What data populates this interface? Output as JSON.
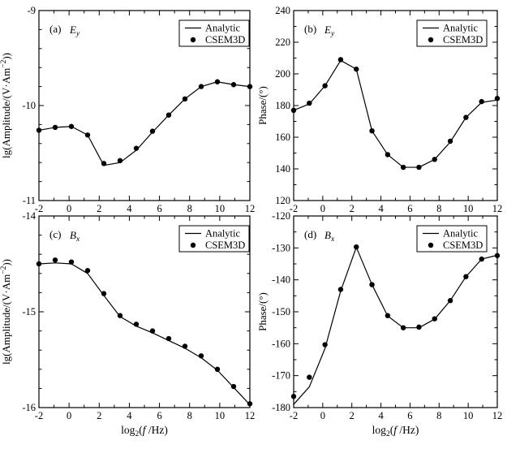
{
  "figure": {
    "background": "#ffffff",
    "ink_color": "#000000",
    "legend": {
      "entries": [
        "Analytic",
        "CSEM3D"
      ],
      "position": "top-right"
    }
  },
  "x_axis": {
    "label_plain": "log2(f/Hz)",
    "label_parts": [
      [
        "t",
        "log"
      ],
      [
        "sub",
        "2"
      ],
      [
        "t",
        "("
      ],
      [
        "i",
        "f"
      ],
      [
        "t",
        " /Hz)"
      ]
    ],
    "range": [
      -2,
      12
    ],
    "ticks": [
      -2,
      0,
      2,
      4,
      6,
      8,
      10,
      12
    ],
    "minor_step": 1
  },
  "chart_data": [
    {
      "id": "a",
      "type": "line",
      "panel": "(a)",
      "symbol_plain": "Ey",
      "symbol_parts": [
        [
          "i",
          "E"
        ],
        [
          "isub",
          "y"
        ]
      ],
      "ylabel_plain": "lg(Amplitude/(V·Am^-2))",
      "ylabel_parts": [
        [
          "t",
          "lg(Amplitude/(V·Am"
        ],
        [
          "sup",
          "−2"
        ],
        [
          "t",
          "))"
        ]
      ],
      "ylim": [
        -11,
        -9
      ],
      "yticks": [
        -9,
        -10,
        -11
      ],
      "y_minor_step": 0.2,
      "show_xlabel": false,
      "x": [
        -2,
        -0.923,
        0.154,
        1.231,
        2.308,
        3.385,
        4.462,
        5.538,
        6.615,
        7.692,
        8.769,
        9.846,
        10.923,
        12
      ],
      "series": [
        {
          "name": "Analytic",
          "style": "line",
          "values": [
            -10.26,
            -10.23,
            -10.22,
            -10.31,
            -10.63,
            -10.6,
            -10.47,
            -10.28,
            -10.1,
            -9.93,
            -9.8,
            -9.75,
            -9.78,
            -9.8
          ]
        },
        {
          "name": "CSEM3D",
          "style": "scatter",
          "values": [
            -10.26,
            -10.23,
            -10.22,
            -10.31,
            -10.61,
            -10.58,
            -10.45,
            -10.27,
            -10.1,
            -9.93,
            -9.8,
            -9.75,
            -9.78,
            -9.8
          ]
        }
      ]
    },
    {
      "id": "b",
      "type": "line",
      "panel": "(b)",
      "symbol_plain": "Ey",
      "symbol_parts": [
        [
          "i",
          "E"
        ],
        [
          "isub",
          "y"
        ]
      ],
      "ylabel_plain": "Phase/(°)",
      "ylabel_parts": [
        [
          "t",
          "Phase/(°)"
        ]
      ],
      "ylim": [
        120,
        240
      ],
      "yticks": [
        240,
        220,
        200,
        180,
        160,
        140,
        120
      ],
      "y_minor_step": 10,
      "show_xlabel": false,
      "x": [
        -2,
        -0.923,
        0.154,
        1.231,
        2.308,
        3.385,
        4.462,
        5.538,
        6.615,
        7.692,
        8.769,
        9.846,
        10.923,
        12
      ],
      "series": [
        {
          "name": "Analytic",
          "style": "line",
          "values": [
            177,
            181,
            192.5,
            208.5,
            203,
            164,
            149,
            141,
            141,
            146,
            157,
            172.5,
            182,
            183.5
          ]
        },
        {
          "name": "CSEM3D",
          "style": "scatter",
          "values": [
            177,
            181.5,
            192.5,
            209,
            203,
            164,
            149,
            141,
            141,
            146,
            157.5,
            172.5,
            182.5,
            184.5
          ]
        }
      ]
    },
    {
      "id": "c",
      "type": "line",
      "panel": "(c)",
      "symbol_plain": "Bx",
      "symbol_parts": [
        [
          "i",
          "B"
        ],
        [
          "isub",
          "x"
        ]
      ],
      "ylabel_plain": "lg(Amplitude/(V·Am^-2))",
      "ylabel_parts": [
        [
          "t",
          "lg(Amplitude/(V·Am"
        ],
        [
          "sup",
          "−2"
        ],
        [
          "t",
          "))"
        ]
      ],
      "ylim": [
        -16,
        -14
      ],
      "yticks": [
        -14,
        -15,
        -16
      ],
      "y_minor_step": 0.2,
      "show_xlabel": true,
      "x": [
        -2,
        -0.923,
        0.154,
        1.231,
        2.308,
        3.385,
        4.462,
        5.538,
        6.615,
        7.692,
        8.769,
        9.846,
        10.923,
        12
      ],
      "series": [
        {
          "name": "Analytic",
          "style": "line",
          "values": [
            -14.5,
            -14.49,
            -14.5,
            -14.6,
            -14.83,
            -15.05,
            -15.15,
            -15.22,
            -15.3,
            -15.38,
            -15.48,
            -15.61,
            -15.79,
            -15.97
          ]
        },
        {
          "name": "CSEM3D",
          "style": "scatter",
          "values": [
            -14.5,
            -14.46,
            -14.48,
            -14.57,
            -14.81,
            -15.04,
            -15.13,
            -15.2,
            -15.28,
            -15.36,
            -15.46,
            -15.6,
            -15.78,
            -15.96
          ]
        }
      ]
    },
    {
      "id": "d",
      "type": "line",
      "panel": "(d)",
      "symbol_plain": "Bx",
      "symbol_parts": [
        [
          "i",
          "B"
        ],
        [
          "isub",
          "x"
        ]
      ],
      "ylabel_plain": "Phase/(°)",
      "ylabel_parts": [
        [
          "t",
          "Phase/(°)"
        ]
      ],
      "ylim": [
        -180,
        -120
      ],
      "yticks": [
        -120,
        -130,
        -140,
        -150,
        -160,
        -170,
        -180
      ],
      "y_minor_step": 5,
      "show_xlabel": true,
      "x": [
        -2,
        -0.923,
        0.154,
        1.231,
        2.308,
        3.385,
        4.462,
        5.538,
        6.615,
        7.692,
        8.769,
        9.846,
        10.923,
        12
      ],
      "series": [
        {
          "name": "Analytic",
          "style": "line",
          "values": [
            -179,
            -173.5,
            -161.5,
            -143.5,
            -129.8,
            -141.5,
            -151.3,
            -155,
            -155,
            -152.3,
            -146.5,
            -139,
            -133.5,
            -132.3
          ]
        },
        {
          "name": "CSEM3D",
          "style": "scatter",
          "values": [
            -176.5,
            -170.5,
            -160.3,
            -143,
            -129.7,
            -141.5,
            -151.2,
            -155,
            -154.8,
            -152.2,
            -146.5,
            -139,
            -133.5,
            -132.4
          ]
        }
      ]
    }
  ]
}
